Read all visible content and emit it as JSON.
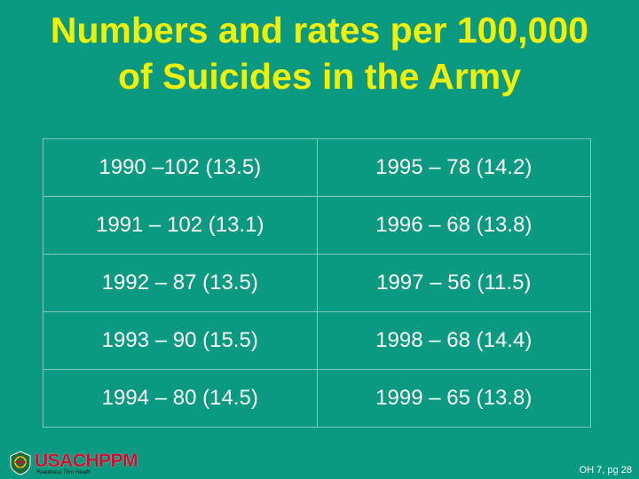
{
  "title": {
    "line1": "Numbers and rates per 100,000",
    "line2": "of Suicides in the Army"
  },
  "table": {
    "rows": [
      [
        "1990 –102 (13.5)",
        "1995 – 78 (14.2)"
      ],
      [
        "1991 – 102 (13.1)",
        "1996 – 68 (13.8)"
      ],
      [
        "1992 – 87 (13.5)",
        "1997 – 56 (11.5)"
      ],
      [
        "1993 – 90 (15.5)",
        "1998 – 68 (14.4)"
      ],
      [
        "1994 – 80 (14.5)",
        "1999 – 65 (13.8)"
      ]
    ]
  },
  "footer": {
    "logo_text": "USACHPPM",
    "logo_tagline": "Readiness Thru Health",
    "logo_icon": "seal-icon",
    "page_ref": "OH 7, pg 28"
  },
  "colors": {
    "background": "#0a9a82",
    "title": "#f0f000",
    "text": "#ffffff",
    "logo": "#c8102e"
  }
}
